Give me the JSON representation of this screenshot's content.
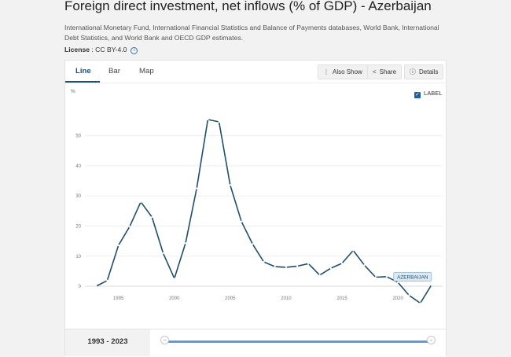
{
  "header": {
    "title": "Foreign direct investment, net inflows (% of GDP) - Azerbaijan",
    "source": "International Monetary Fund, International Financial Statistics and Balance of Payments databases, World Bank, International Debt Statistics, and World Bank and OECD GDP estimates.",
    "license_label": "License",
    "license_value": " : CC BY-4.0"
  },
  "tabs": [
    "Line",
    "Bar",
    "Map"
  ],
  "toolbar": {
    "also_show": "Also Show",
    "share": "Share",
    "details": "Details"
  },
  "label_toggle": "LABEL",
  "range": "1993 - 2023",
  "chart_data": {
    "type": "line",
    "title": "",
    "ylabel": "%",
    "xlabel": "",
    "ylim": [
      -6,
      58
    ],
    "xlim": [
      1992,
      2024
    ],
    "yticks": [
      0,
      10,
      20,
      30,
      40,
      50
    ],
    "ytick_labels": [
      "0",
      "10",
      "20",
      "30",
      "40",
      "50"
    ],
    "xticks": [
      1995,
      2000,
      2005,
      2010,
      2015,
      2020
    ],
    "xtick_labels": [
      "1995",
      "2000",
      "2005",
      "2010",
      "2015",
      "2020"
    ],
    "grid": true,
    "series": [
      {
        "name": "AZERBAIJAN",
        "color": "#1f4e6c",
        "x": [
          1993,
          1994,
          1995,
          1996,
          1997,
          1998,
          1999,
          2000,
          2001,
          2002,
          2003,
          2004,
          2005,
          2006,
          2007,
          2008,
          2009,
          2010,
          2011,
          2012,
          2013,
          2014,
          2015,
          2016,
          2017,
          2018,
          2019,
          2020,
          2021,
          2022,
          2023
        ],
        "y": [
          0.0,
          1.9,
          13.6,
          19.8,
          28.0,
          23.0,
          11.0,
          2.6,
          14.3,
          32.5,
          55.4,
          54.6,
          33.6,
          21.5,
          14.0,
          8.1,
          6.5,
          6.3,
          6.7,
          7.5,
          3.7,
          6.0,
          7.6,
          11.9,
          7.0,
          3.0,
          3.2,
          1.3,
          -3.0,
          -5.6,
          0.4
        ]
      }
    ]
  }
}
